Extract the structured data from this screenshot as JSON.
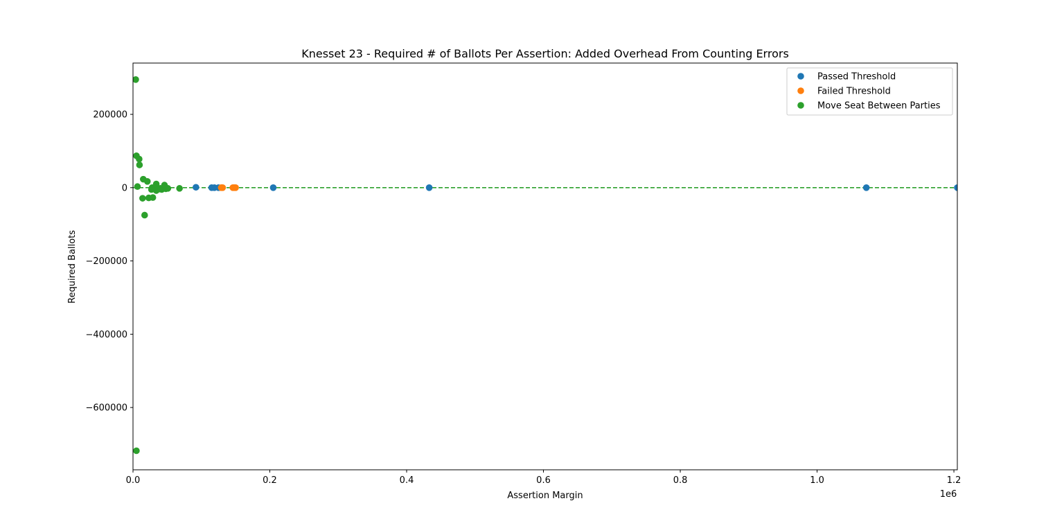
{
  "chart_data": {
    "type": "scatter",
    "title": "Knesset 23 - Required # of Ballots Per Assertion: Added Overhead From Counting Errors",
    "xlabel": "Assertion Margin",
    "ylabel": "Required Ballots",
    "x_offset_label": "1e6",
    "xlim": [
      0,
      1205000
    ],
    "ylim": [
      -770000,
      340000
    ],
    "x_ticks": [
      0,
      200000,
      400000,
      600000,
      800000,
      1000000,
      1200000
    ],
    "x_tick_labels": [
      "0.0",
      "0.2",
      "0.4",
      "0.6",
      "0.8",
      "1.0",
      "1.2"
    ],
    "y_ticks": [
      200000,
      0,
      -200000,
      -400000,
      -600000
    ],
    "y_tick_labels": [
      "200000",
      "0",
      "−200000",
      "−400000",
      "−600000"
    ],
    "reference_line": {
      "y": 0,
      "style": "dashed",
      "color": "#2ca02c"
    },
    "grid": false,
    "legend_position": "top-right",
    "series": [
      {
        "name": "Passed Threshold",
        "color": "#1f77b4",
        "points": [
          [
            92000,
            1000
          ],
          [
            115000,
            0
          ],
          [
            119000,
            0
          ],
          [
            125000,
            0
          ],
          [
            205000,
            0
          ],
          [
            433000,
            0
          ],
          [
            1072000,
            0
          ],
          [
            1205000,
            0
          ]
        ]
      },
      {
        "name": "Failed Threshold",
        "color": "#ff7f0e",
        "points": [
          [
            129000,
            0
          ],
          [
            131000,
            0
          ],
          [
            146000,
            0
          ],
          [
            148000,
            0
          ],
          [
            150000,
            0
          ]
        ]
      },
      {
        "name": "Move Seat Between Parties",
        "color": "#2ca02c",
        "points": [
          [
            4000,
            295000
          ],
          [
            5000,
            87000
          ],
          [
            9000,
            78000
          ],
          [
            9500,
            62000
          ],
          [
            6500,
            3000
          ],
          [
            15000,
            23000
          ],
          [
            21000,
            17000
          ],
          [
            14000,
            -29000
          ],
          [
            17000,
            -75000
          ],
          [
            23000,
            -28000
          ],
          [
            29000,
            -27000
          ],
          [
            27000,
            -5000
          ],
          [
            28000,
            0
          ],
          [
            30000,
            -3000
          ],
          [
            34000,
            10000
          ],
          [
            34000,
            -8000
          ],
          [
            38000,
            -4000
          ],
          [
            40000,
            -2000
          ],
          [
            42000,
            -5000
          ],
          [
            46000,
            7000
          ],
          [
            48000,
            -3000
          ],
          [
            51000,
            -2000
          ],
          [
            68000,
            -2000
          ],
          [
            5000,
            -718000
          ]
        ]
      }
    ]
  }
}
